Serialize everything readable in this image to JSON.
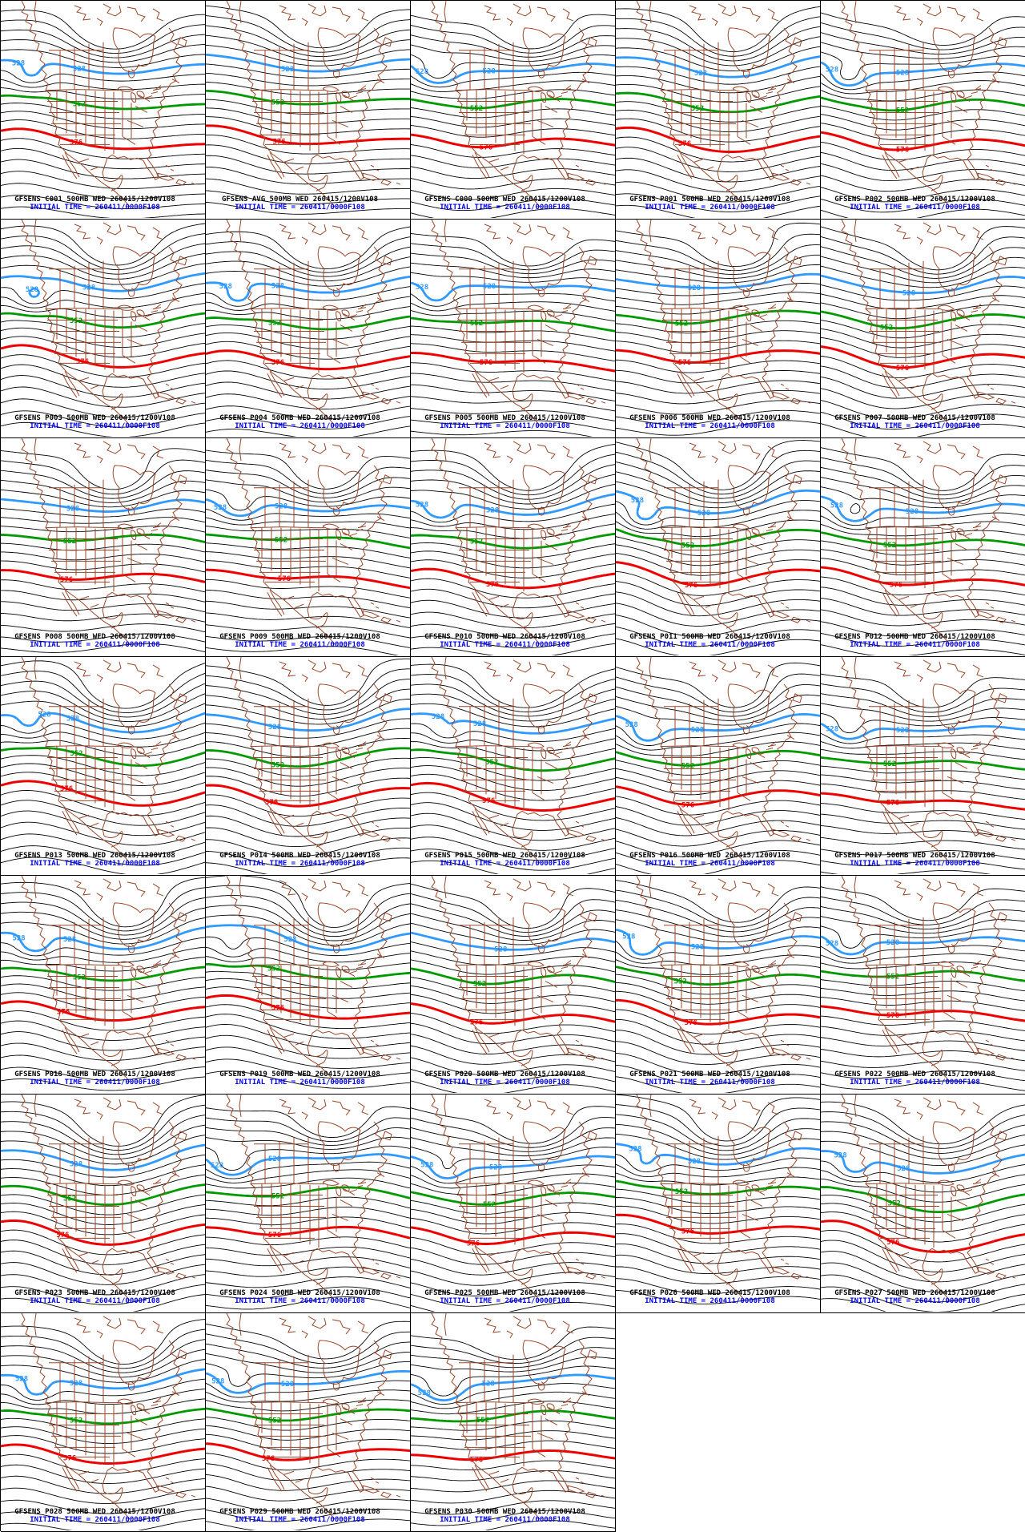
{
  "product": {
    "model": "GFSENS",
    "field": "500MB",
    "valid_time_label": "WED 260415/1200V108",
    "initial_time_line": "INITIAL TIME = 260411/0000F108"
  },
  "grid": {
    "columns": 5,
    "rows": 7,
    "panel_count": 33
  },
  "contour_labels": {
    "blue": "528",
    "green": "552",
    "red": "576"
  },
  "colors": {
    "background": "#ffffff",
    "panel_border": "#000000",
    "geography_brown": "#99462a",
    "contour_black": "#000000",
    "contour_blue": "#2f99ff",
    "contour_green": "#009900",
    "contour_red": "#ee0000",
    "caption_black": "#000000",
    "caption_blue": "#0000ee"
  },
  "panels": [
    {
      "member": "C001",
      "title": "GFSENS C001 500MB WED 260415/1200V108"
    },
    {
      "member": "AVG",
      "title": "GFSENS AVG 500MB WED 260415/1200V108"
    },
    {
      "member": "C000",
      "title": "GFSENS C000 500MB WED 260415/1200V108"
    },
    {
      "member": "P001",
      "title": "GFSENS P001 500MB WED 260415/1200V108"
    },
    {
      "member": "P002",
      "title": "GFSENS P002 500MB WED 260415/1200V108"
    },
    {
      "member": "P003",
      "title": "GFSENS P003 500MB WED 260415/1200V108"
    },
    {
      "member": "P004",
      "title": "GFSENS P004 500MB WED 260415/1200V108"
    },
    {
      "member": "P005",
      "title": "GFSENS P005 500MB WED 260415/1200V108"
    },
    {
      "member": "P006",
      "title": "GFSENS P006 500MB WED 260415/1200V108"
    },
    {
      "member": "P007",
      "title": "GFSENS P007 500MB WED 260415/1200V108"
    },
    {
      "member": "P008",
      "title": "GFSENS P008 500MB WED 260415/1200V108"
    },
    {
      "member": "P009",
      "title": "GFSENS P009 500MB WED 260415/1200V108"
    },
    {
      "member": "P010",
      "title": "GFSENS P010 500MB WED 260415/1200V108"
    },
    {
      "member": "P011",
      "title": "GFSENS P011 500MB WED 260415/1200V108"
    },
    {
      "member": "P012",
      "title": "GFSENS P012 500MB WED 260415/1200V108"
    },
    {
      "member": "P013",
      "title": "GFSENS P013 500MB WED 260415/1200V108"
    },
    {
      "member": "P014",
      "title": "GFSENS P014 500MB WED 260415/1200V108"
    },
    {
      "member": "P015",
      "title": "GFSENS P015 500MB WED 260415/1200V108"
    },
    {
      "member": "P016",
      "title": "GFSENS P016 500MB WED 260415/1200V108"
    },
    {
      "member": "P017",
      "title": "GFSENS P017 500MB WED 260415/1200V108"
    },
    {
      "member": "P018",
      "title": "GFSENS P018 500MB WED 260415/1200V108"
    },
    {
      "member": "P019",
      "title": "GFSENS P019 500MB WED 260415/1200V108"
    },
    {
      "member": "P020",
      "title": "GFSENS P020 500MB WED 260415/1200V108"
    },
    {
      "member": "P021",
      "title": "GFSENS P021 500MB WED 260415/1200V108"
    },
    {
      "member": "P022",
      "title": "GFSENS P022 500MB WED 260415/1200V108"
    },
    {
      "member": "P023",
      "title": "GFSENS P023 500MB WED 260415/1200V108"
    },
    {
      "member": "P024",
      "title": "GFSENS P024 500MB WED 260415/1200V108"
    },
    {
      "member": "P025",
      "title": "GFSENS P025 500MB WED 260415/1200V108"
    },
    {
      "member": "P026",
      "title": "GFSENS P026 500MB WED 260415/1200V108"
    },
    {
      "member": "P027",
      "title": "GFSENS P027 500MB WED 260415/1200V108"
    },
    {
      "member": "P028",
      "title": "GFSENS P028 500MB WED 260415/1200V108"
    },
    {
      "member": "P029",
      "title": "GFSENS P029 500MB WED 260415/1200V108"
    },
    {
      "member": "P030",
      "title": "GFSENS P030 500MB WED 260415/1200V108"
    }
  ]
}
